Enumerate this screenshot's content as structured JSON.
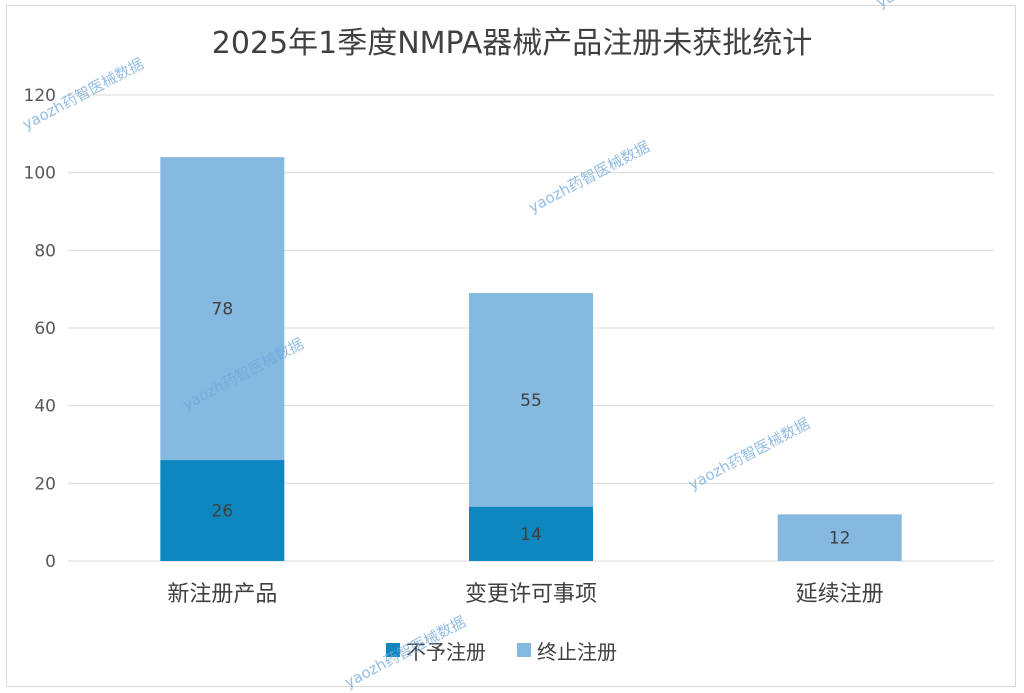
{
  "chart_data": {
    "type": "bar",
    "stacked": true,
    "title": "2025年1季度NMPA器械产品注册未获批统计",
    "categories": [
      "新注册产品",
      "变更许可事项",
      "延续注册"
    ],
    "series": [
      {
        "name": "不予注册",
        "color": "#0e86bf",
        "values": [
          26,
          14,
          0
        ]
      },
      {
        "name": "终止注册",
        "color": "#86b9e0",
        "values": [
          78,
          55,
          12
        ]
      }
    ],
    "ylim": [
      0,
      120
    ],
    "yticks": [
      0,
      20,
      40,
      60,
      80,
      100,
      120
    ],
    "grid": true,
    "legend_position": "bottom",
    "xlabel": "",
    "ylabel": ""
  },
  "watermark": {
    "text": "yaozh药智医械数据"
  }
}
